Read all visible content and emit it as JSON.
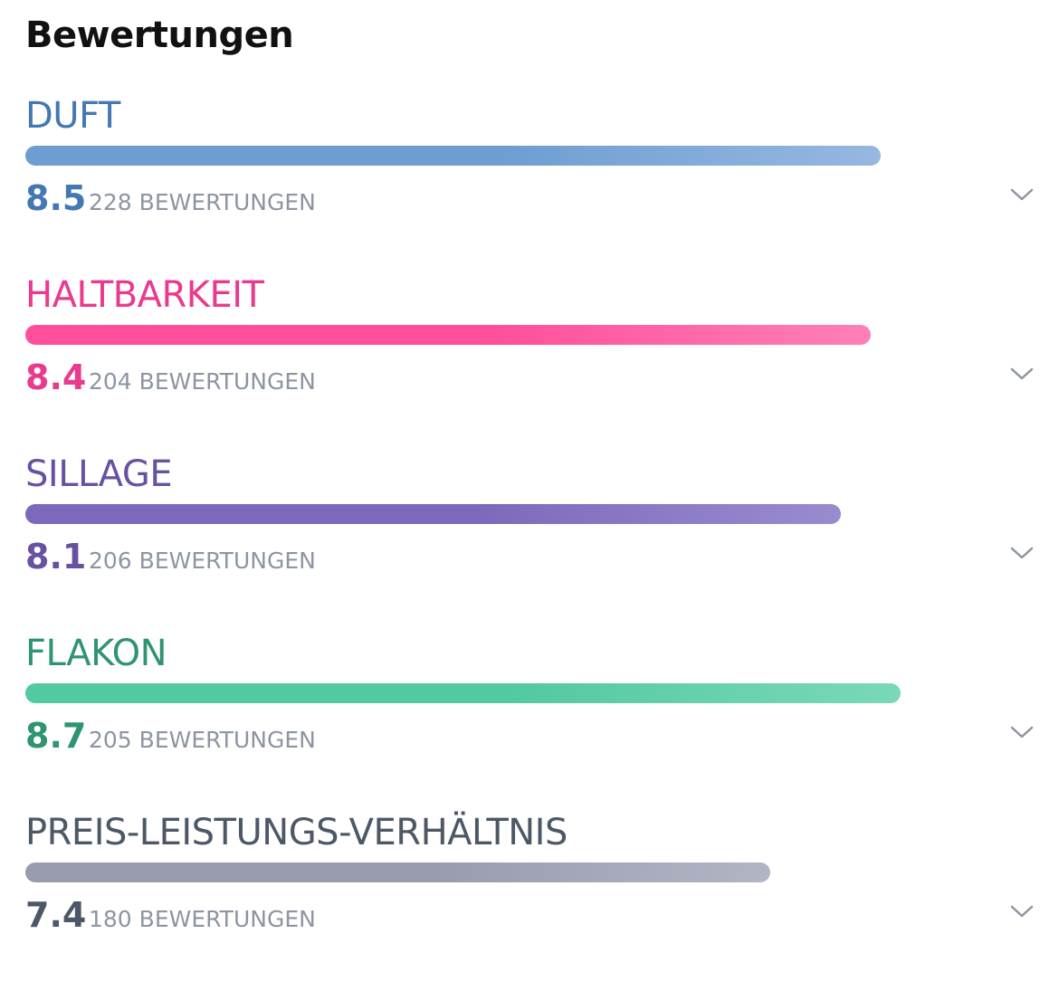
{
  "header": {
    "title": "Bewertungen"
  },
  "count_unit": "BEWERTUNGEN",
  "ratings": [
    {
      "label": "DUFT",
      "score": 8.5,
      "count": 228,
      "text_color": "#4478b3",
      "bar_colors": [
        "#6e9dd2",
        "#96b8e1"
      ]
    },
    {
      "label": "HALTBARKEIT",
      "score": 8.4,
      "count": 204,
      "text_color": "#ea3a8e",
      "bar_colors": [
        "#ff4f9a",
        "#ff80b6"
      ]
    },
    {
      "label": "SILLAGE",
      "score": 8.1,
      "count": 206,
      "text_color": "#6851a0",
      "bar_colors": [
        "#7d69bb",
        "#9a8bd0"
      ]
    },
    {
      "label": "FLAKON",
      "score": 8.7,
      "count": 205,
      "text_color": "#2f9470",
      "bar_colors": [
        "#52c9a1",
        "#7ad8b8"
      ]
    },
    {
      "label": "PREIS-LEISTUNGS-VERHÄLTNIS",
      "score": 7.4,
      "count": 180,
      "text_color": "#4d5866",
      "bar_colors": [
        "#979daf",
        "#b0b6c4"
      ]
    }
  ]
}
